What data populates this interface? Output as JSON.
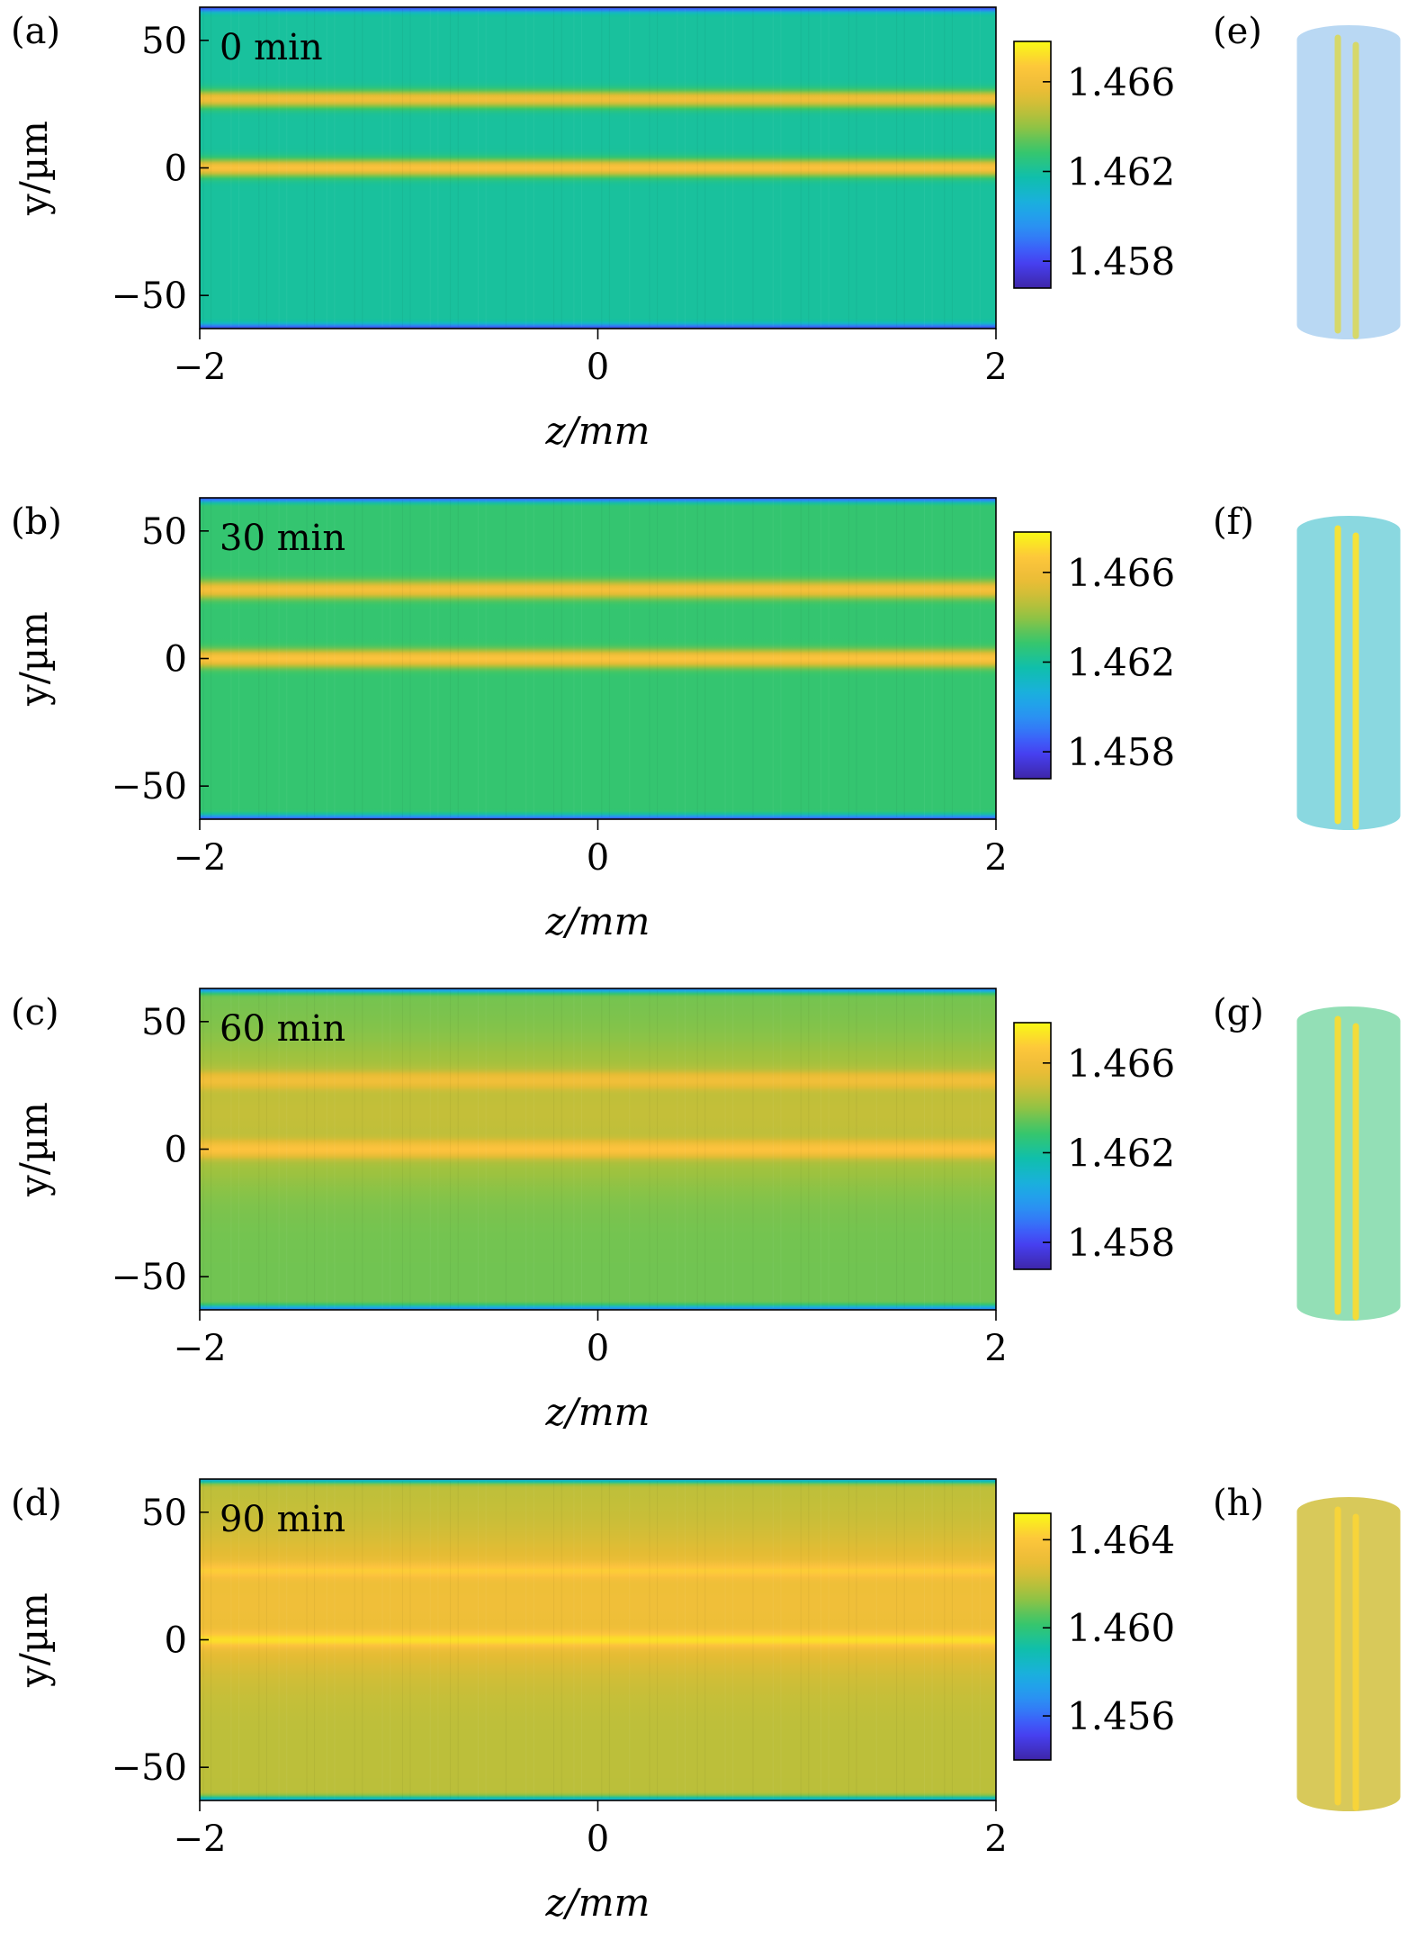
{
  "chart_data": [
    {
      "type": "heatmap",
      "panel_label": "(a)",
      "time_label": "0 min",
      "xlabel": "z/mm",
      "ylabel": "y/µm",
      "xlim": [
        -2,
        2
      ],
      "ylim": [
        -63,
        63
      ],
      "x_ticks": [
        "−2",
        "0",
        "2"
      ],
      "x_tick_values": [
        -2,
        0,
        2
      ],
      "y_ticks": [
        "50",
        "0",
        "−50"
      ],
      "y_tick_values": [
        50,
        0,
        -50
      ],
      "colorbar": {
        "ticks": [
          "1.466",
          "1.462",
          "1.458"
        ],
        "tick_values": [
          1.466,
          1.462,
          1.458
        ],
        "range": [
          1.4568,
          1.4678
        ]
      },
      "background_value": 1.462,
      "edge_value": 1.4575,
      "cores": [
        {
          "y": 27,
          "value": 1.466
        },
        {
          "y": 0,
          "value": 1.4665
        }
      ],
      "haze_value": null
    },
    {
      "type": "heatmap",
      "panel_label": "(b)",
      "time_label": "30 min",
      "xlabel": "z/mm",
      "ylabel": "y/µm",
      "xlim": [
        -2,
        2
      ],
      "ylim": [
        -63,
        63
      ],
      "x_ticks": [
        "−2",
        "0",
        "2"
      ],
      "x_tick_values": [
        -2,
        0,
        2
      ],
      "y_ticks": [
        "50",
        "0",
        "−50"
      ],
      "y_tick_values": [
        50,
        0,
        -50
      ],
      "colorbar": {
        "ticks": [
          "1.466",
          "1.462",
          "1.458"
        ],
        "tick_values": [
          1.466,
          1.462,
          1.458
        ],
        "range": [
          1.4568,
          1.4678
        ]
      },
      "background_value": 1.4628,
      "edge_value": 1.458,
      "cores": [
        {
          "y": 27,
          "value": 1.4662
        },
        {
          "y": 0,
          "value": 1.4666
        }
      ],
      "haze_value": null
    },
    {
      "type": "heatmap",
      "panel_label": "(c)",
      "time_label": "60 min",
      "xlabel": "z/mm",
      "ylabel": "y/µm",
      "xlim": [
        -2,
        2
      ],
      "ylim": [
        -63,
        63
      ],
      "x_ticks": [
        "−2",
        "0",
        "2"
      ],
      "x_tick_values": [
        -2,
        0,
        2
      ],
      "y_ticks": [
        "50",
        "0",
        "−50"
      ],
      "y_tick_values": [
        50,
        0,
        -50
      ],
      "colorbar": {
        "ticks": [
          "1.466",
          "1.462",
          "1.458"
        ],
        "tick_values": [
          1.466,
          1.462,
          1.458
        ],
        "range": [
          1.4568,
          1.4678
        ]
      },
      "background_value": 1.4636,
      "edge_value": 1.459,
      "cores": [
        {
          "y": 27,
          "value": 1.466
        },
        {
          "y": 0,
          "value": 1.4666
        }
      ],
      "haze_value": 1.4648
    },
    {
      "type": "heatmap",
      "panel_label": "(d)",
      "time_label": "90 min",
      "xlabel": "z/mm",
      "ylabel": "y/µm",
      "xlim": [
        -2,
        2
      ],
      "ylim": [
        -63,
        63
      ],
      "x_ticks": [
        "−2",
        "0",
        "2"
      ],
      "x_tick_values": [
        -2,
        0,
        2
      ],
      "y_ticks": [
        "50",
        "0",
        "−50"
      ],
      "y_tick_values": [
        50,
        0,
        -50
      ],
      "colorbar": {
        "ticks": [
          "1.464",
          "1.460",
          "1.456"
        ],
        "tick_values": [
          1.464,
          1.46,
          1.456
        ],
        "range": [
          1.454,
          1.4652
        ]
      },
      "background_value": 1.462,
      "edge_value": 1.4575,
      "cores": [
        {
          "y": 27,
          "value": 1.4642
        },
        {
          "y": 0,
          "value": 1.4646
        }
      ],
      "haze_value": 1.4633
    }
  ],
  "fiber_views": [
    {
      "panel_label": "(e)",
      "body_color": "#b9d8f3",
      "core_color": "#d6d86a"
    },
    {
      "panel_label": "(f)",
      "body_color": "#8ad8e0",
      "core_color": "#f5e23a"
    },
    {
      "panel_label": "(g)",
      "body_color": "#93dfb6",
      "core_color": "#f3dc3a"
    },
    {
      "panel_label": "(h)",
      "body_color": "#d8c95a",
      "core_color": "#f7d43a"
    }
  ],
  "colors": {
    "parula": [
      "#3e26a8",
      "#4743f8",
      "#2e87f7",
      "#1cade4",
      "#0ebfae",
      "#38c66a",
      "#9dc23f",
      "#e4bc34",
      "#fdc23e",
      "#f9fb15"
    ]
  }
}
